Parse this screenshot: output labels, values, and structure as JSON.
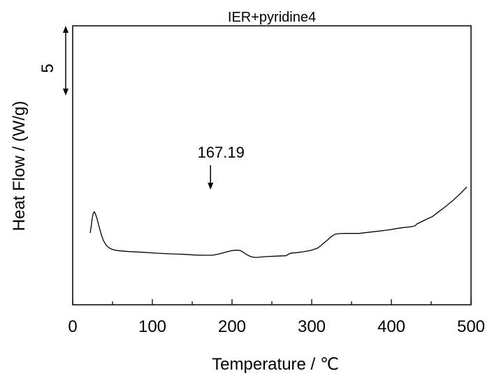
{
  "chart_data": {
    "type": "line",
    "title": "IER+pyridine4",
    "xlabel": "Temperature / ℃",
    "ylabel": "Heat Flow / (W/g)",
    "xlim": [
      0,
      500
    ],
    "xticks": [
      0,
      100,
      200,
      300,
      400,
      500
    ],
    "xtick_labels": [
      "0",
      "100",
      "200",
      "300",
      "400",
      "500"
    ],
    "y_ticks_shown": false,
    "scale_bar": {
      "label": "5",
      "value": 5
    },
    "grid": false,
    "legend": "none",
    "annotation": {
      "label": "167.19",
      "x": 173
    },
    "series": [
      {
        "x": [
          22.0,
          23.3,
          24.6,
          25.8,
          27.1,
          28.4,
          30.9,
          33.5,
          36.1,
          38.6,
          42.1,
          45.6,
          50.0,
          56.1,
          70.2,
          87.7,
          105.3,
          122.8,
          140.4,
          153.5,
          167.5,
          175.4,
          184.2,
          193.0,
          200.0,
          206.1,
          210.5,
          214.9,
          219.3,
          223.7,
          228.1,
          232.5,
          241.2,
          254.4,
          267.5,
          272.8,
          276.3,
          280.7,
          289.5,
          298.2,
          307.0,
          311.4,
          315.8,
          320.2,
          324.6,
          329.0,
          333.3,
          342.1,
          359.6,
          377.2,
          394.7,
          412.3,
          425.4,
          429.8,
          432.5,
          434.2,
          443.0,
          451.8,
          460.5,
          469.3,
          478.1,
          486.8,
          494.7
        ],
        "y": [
          3.09,
          3.39,
          3.73,
          3.93,
          4.0,
          3.93,
          3.66,
          3.31,
          3.0,
          2.76,
          2.56,
          2.45,
          2.38,
          2.33,
          2.29,
          2.26,
          2.22,
          2.19,
          2.17,
          2.14,
          2.13,
          2.13,
          2.19,
          2.27,
          2.33,
          2.35,
          2.33,
          2.24,
          2.14,
          2.07,
          2.04,
          2.04,
          2.07,
          2.09,
          2.11,
          2.21,
          2.23,
          2.24,
          2.28,
          2.33,
          2.43,
          2.54,
          2.67,
          2.8,
          2.93,
          3.03,
          3.06,
          3.07,
          3.07,
          3.14,
          3.21,
          3.31,
          3.36,
          3.4,
          3.49,
          3.51,
          3.66,
          3.8,
          4.03,
          4.26,
          4.51,
          4.79,
          5.07
        ]
      }
    ],
    "line_color": "#000000"
  }
}
